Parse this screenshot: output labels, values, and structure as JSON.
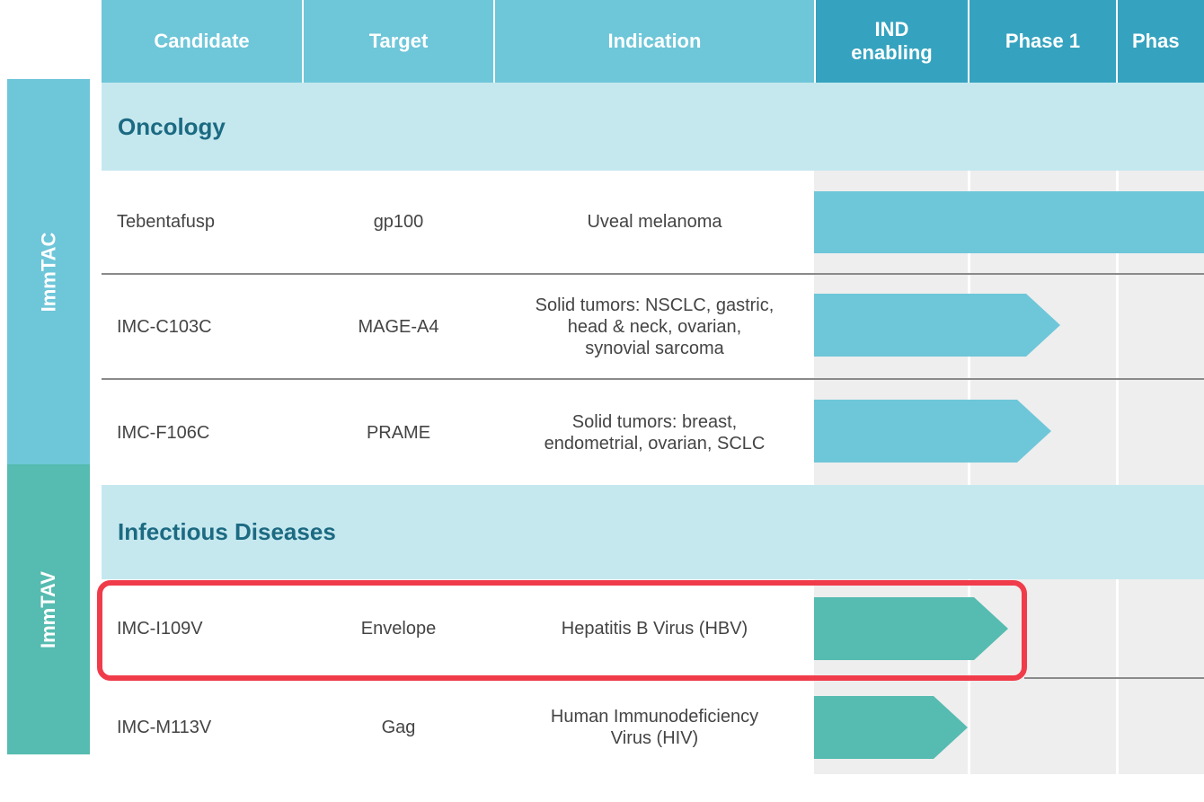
{
  "header": {
    "columns": [
      "Candidate",
      "Target",
      "Indication",
      [
        "IND",
        "enabling"
      ],
      "Phase 1",
      "Phas"
    ]
  },
  "groups": [
    "ImmTAC",
    "ImmTAV"
  ],
  "sections": [
    "Oncology",
    "Infectious Diseases"
  ],
  "table": {
    "rows": [
      {
        "candidate": "Tebentafusp",
        "target": "gp100",
        "indication": [
          "Uveal melanoma"
        ]
      },
      {
        "candidate": "IMC-C103C",
        "target": "MAGE-A4",
        "indication": [
          "Solid tumors: NSCLC, gastric,",
          "head & neck, ovarian,",
          "synovial sarcoma"
        ]
      },
      {
        "candidate": "IMC-F106C",
        "target": "PRAME",
        "indication": [
          "Solid tumors: breast,",
          "endometrial, ovarian, SCLC"
        ]
      },
      {
        "candidate": "IMC-I109V",
        "target": "Envelope",
        "indication": [
          "Hepatitis B Virus (HBV)"
        ]
      },
      {
        "candidate": "IMC-M113V",
        "target": "Gag",
        "indication": [
          "Human Immunodeficiency",
          "Virus (HIV)"
        ]
      }
    ]
  }
}
